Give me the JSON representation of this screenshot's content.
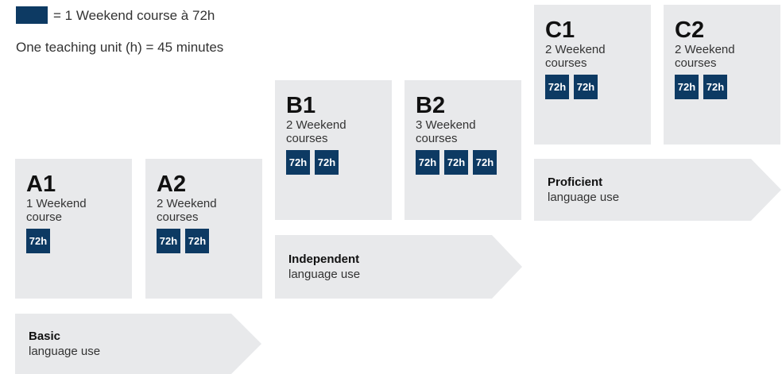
{
  "legend": {
    "text": "= 1 Weekend course à 72h",
    "note": "One teaching unit (h) = 45 minutes"
  },
  "levels": [
    {
      "code": "A1",
      "courses": "1 Weekend course",
      "badges": [
        "72h"
      ]
    },
    {
      "code": "A2",
      "courses": "2 Weekend courses",
      "badges": [
        "72h",
        "72h"
      ]
    },
    {
      "code": "B1",
      "courses": "2 Weekend courses",
      "badges": [
        "72h",
        "72h"
      ]
    },
    {
      "code": "B2",
      "courses": "3 Weekend courses",
      "badges": [
        "72h",
        "72h",
        "72h"
      ]
    },
    {
      "code": "C1",
      "courses": "2 Weekend courses",
      "badges": [
        "72h",
        "72h"
      ]
    },
    {
      "code": "C2",
      "courses": "2 Weekend courses",
      "badges": [
        "72h",
        "72h"
      ]
    }
  ],
  "groups": [
    {
      "title": "Basic",
      "subtitle": "language use"
    },
    {
      "title": "Independent",
      "subtitle": "language use"
    },
    {
      "title": "Proficient",
      "subtitle": "language use"
    }
  ]
}
